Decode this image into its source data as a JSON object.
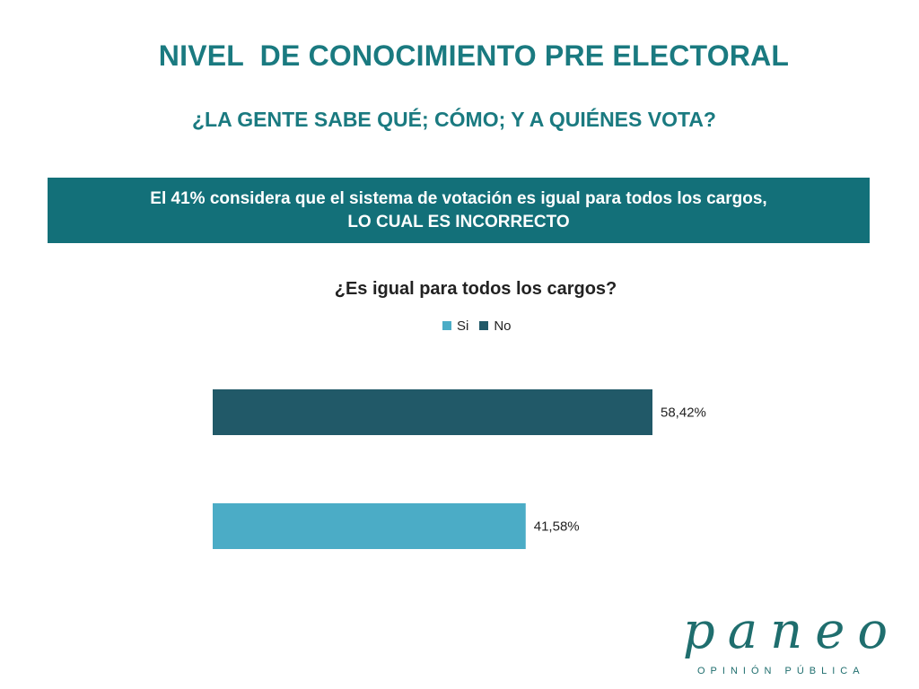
{
  "slide": {
    "title": "NIVEL  DE CONOCIMIENTO PRE ELECTORAL",
    "subtitle": "¿LA GENTE SABE QUÉ; CÓMO; Y A QUIÉNES VOTA?",
    "banner_line1": "El 41% considera que el sistema de votación es igual para todos los cargos,",
    "banner_line2": "LO CUAL ES INCORRECTO"
  },
  "logo": {
    "word": "paneo",
    "tagline": "OPINIÓN PÚBLICA"
  },
  "colors": {
    "title": "#1a7a80",
    "banner_bg": "#137079",
    "logo": "#1f6e6e",
    "si": "#4bacc6",
    "no": "#215968"
  },
  "chart_data": {
    "type": "bar",
    "orientation": "horizontal",
    "title": "¿Es igual para todos los cargos?",
    "legend_position": "top",
    "series": [
      {
        "name": "Si",
        "value": 41.58,
        "label": "41,58%",
        "color": "#4bacc6"
      },
      {
        "name": "No",
        "value": 58.42,
        "label": "58,42%",
        "color": "#215968"
      }
    ],
    "xlim": [
      0,
      70
    ],
    "grid": false
  }
}
